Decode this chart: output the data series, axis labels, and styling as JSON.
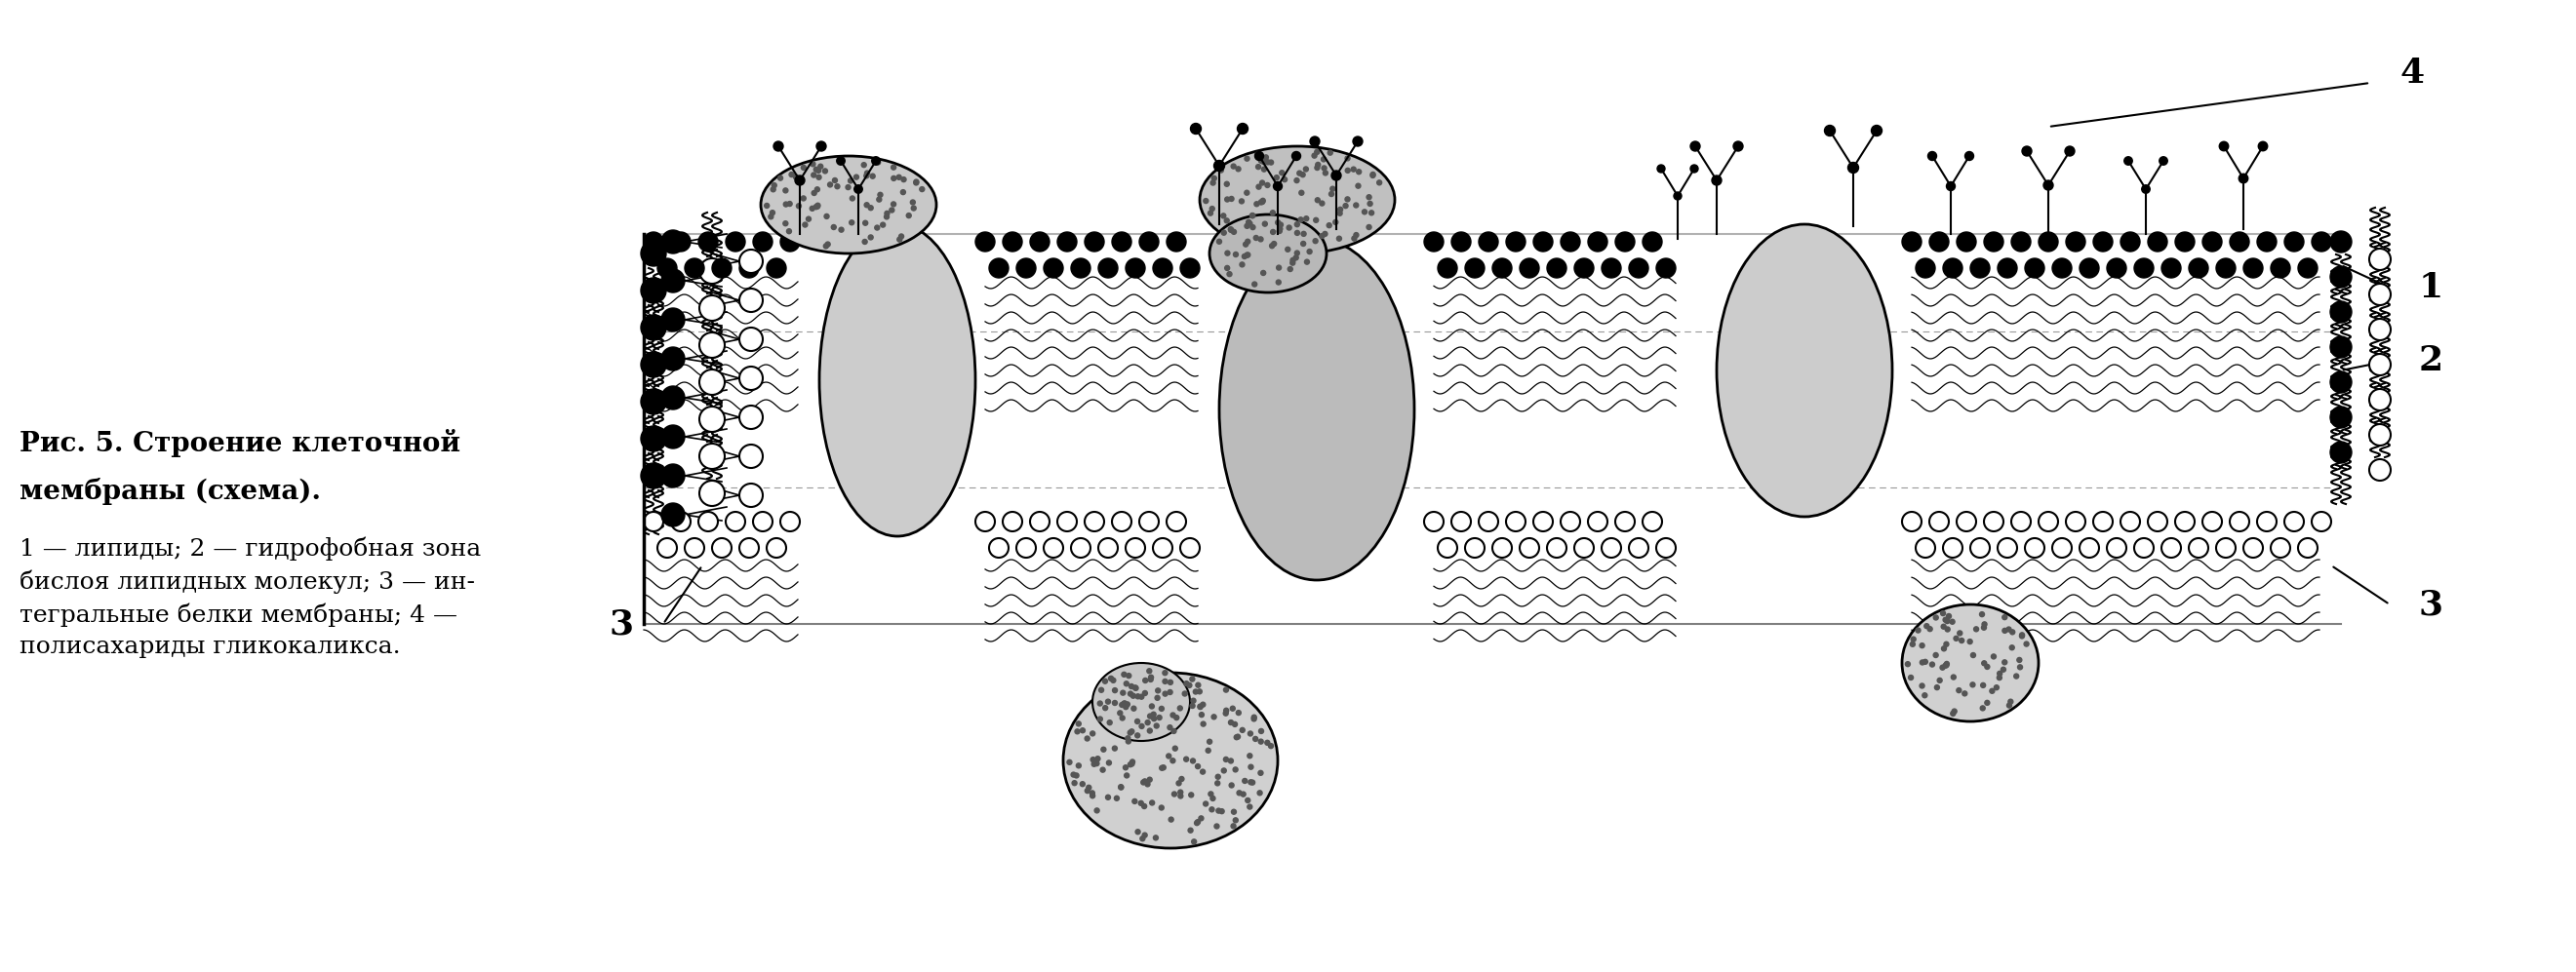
{
  "title_line1": "Рис. 5. Строение клеточной",
  "title_line2": "мембраны (схема).",
  "caption": "1 — липиды; 2 — гидрофобная зона\nбислоя липидных молекул; 3 — ин-\nтегральные белки мембраны; 4 —\nполисахариды гликокаликса.",
  "bg_color": "#ffffff",
  "fg_color": "#000000",
  "label1": "1",
  "label2": "2",
  "label3": "3",
  "label4": "4"
}
